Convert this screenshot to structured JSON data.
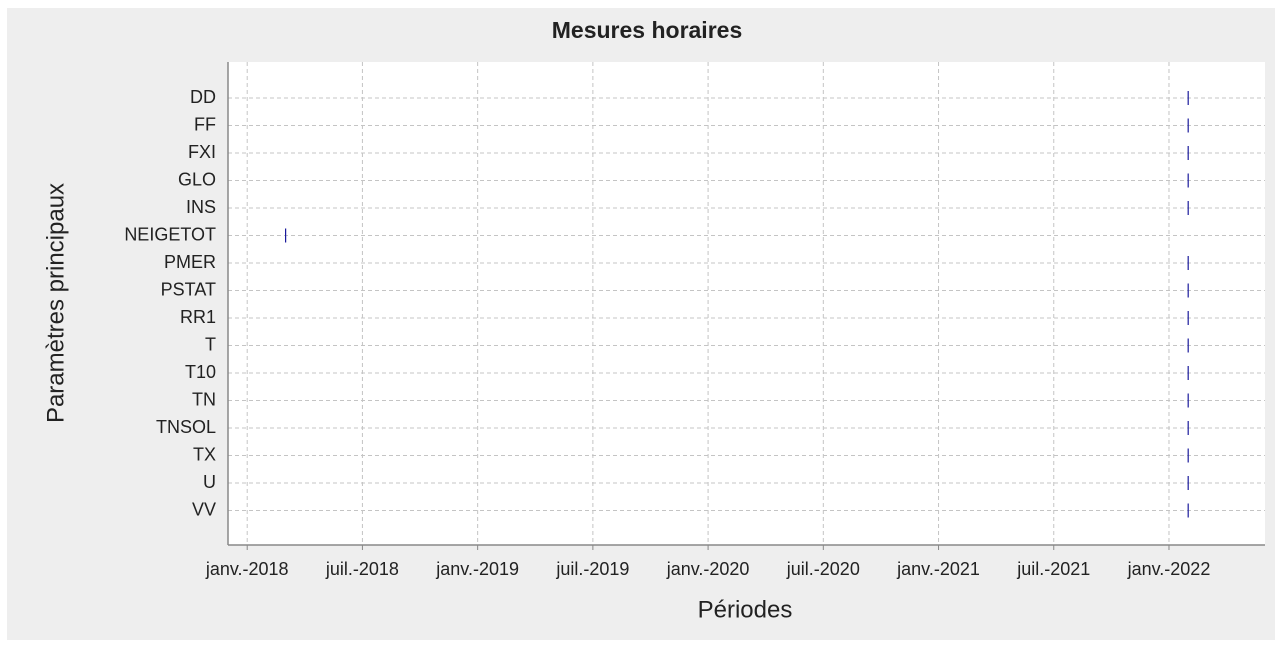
{
  "chart_data": {
    "type": "timeline",
    "title": "Mesures horaires",
    "xlabel": "Périodes",
    "ylabel": "Paramètres principaux",
    "categories": [
      "DD",
      "FF",
      "FXI",
      "GLO",
      "INS",
      "NEIGETOT",
      "PMER",
      "PSTAT",
      "RR1",
      "T",
      "T10",
      "TN",
      "TNSOL",
      "TX",
      "U",
      "VV"
    ],
    "x": [
      "2022-02",
      "2022-02",
      "2022-02",
      "2022-02",
      "2022-02",
      "2018-03",
      "2022-02",
      "2022-02",
      "2022-02",
      "2022-02",
      "2022-02",
      "2022-02",
      "2022-02",
      "2022-02",
      "2022-02",
      "2022-02"
    ],
    "color": "#1a1a9c",
    "xlim": [
      "2017-12",
      "2022-06"
    ],
    "xticks": [
      {
        "value": "2018-01",
        "label": "janv.-2018"
      },
      {
        "value": "2018-07",
        "label": "juil.-2018"
      },
      {
        "value": "2019-01",
        "label": "janv.-2019"
      },
      {
        "value": "2019-07",
        "label": "juil.-2019"
      },
      {
        "value": "2020-01",
        "label": "janv.-2020"
      },
      {
        "value": "2020-07",
        "label": "juil.-2020"
      },
      {
        "value": "2021-01",
        "label": "janv.-2021"
      },
      {
        "value": "2021-07",
        "label": "juil.-2021"
      },
      {
        "value": "2022-01",
        "label": "janv.-2022"
      }
    ],
    "grid": true
  }
}
